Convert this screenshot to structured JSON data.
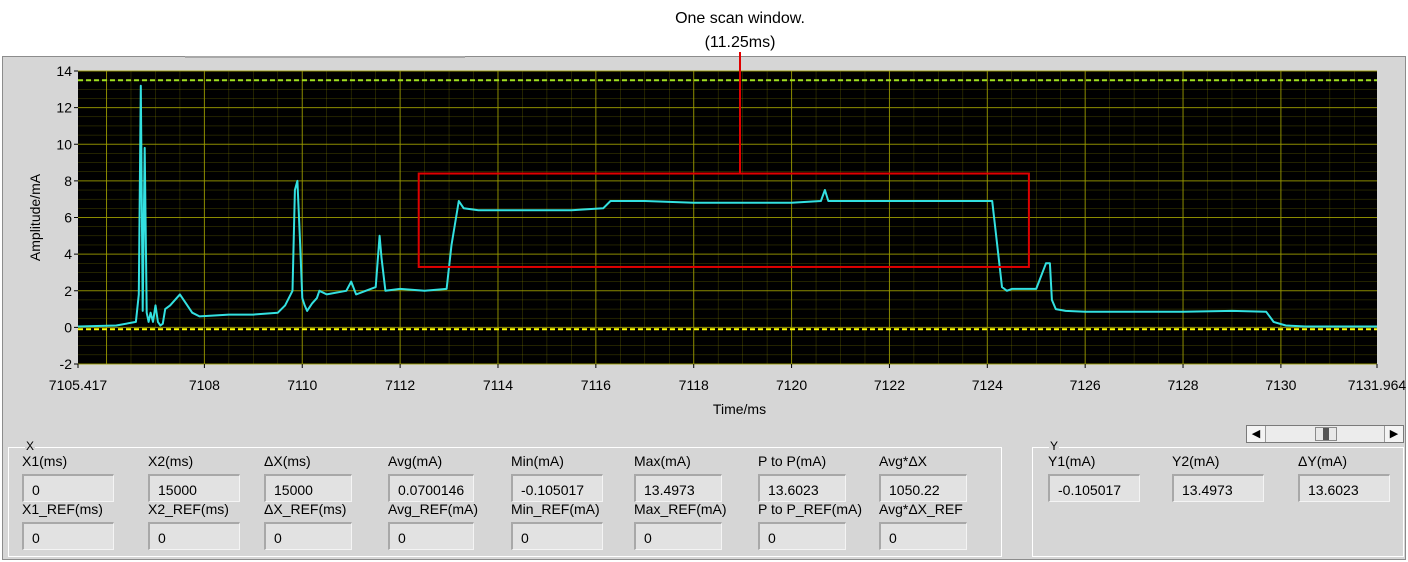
{
  "annotation": {
    "line1": "One scan window.",
    "line2": "(11.25ms)"
  },
  "chart_data": {
    "type": "line",
    "xlabel": "Time/ms",
    "ylabel": "Amplitude/mA",
    "xlim": [
      7105.417,
      7131.964
    ],
    "ylim": [
      -2,
      14
    ],
    "x_ticks": [
      "7105.417",
      "7108",
      "7110",
      "7112",
      "7114",
      "7116",
      "7118",
      "7120",
      "7122",
      "7124",
      "7126",
      "7128",
      "7130",
      "7131.964"
    ],
    "y_ticks": [
      "-2",
      "0",
      "2",
      "4",
      "6",
      "8",
      "10",
      "12",
      "14"
    ],
    "grid": true,
    "colors": {
      "plot_bg": "#000000",
      "grid": "#9a9a00",
      "trace": "#33e0e0",
      "cursor1": "#ffff00",
      "cursor2": "#a0e020",
      "highlight": "#e00000"
    },
    "series": [
      {
        "x": [
          7105.417,
          7106.2,
          7106.6,
          7106.66,
          7106.7,
          7106.74,
          7106.78,
          7106.82,
          7106.86,
          7106.9,
          7106.95,
          7107.0,
          7107.05,
          7107.1,
          7107.15,
          7107.2,
          7107.3,
          7107.5,
          7107.6,
          7107.75,
          7107.9,
          7108.5,
          7109.0,
          7109.5,
          7109.65,
          7109.8,
          7109.85,
          7109.9,
          7109.95,
          7110.0,
          7110.05,
          7110.1,
          7110.2,
          7110.3,
          7110.35,
          7110.5,
          7110.9,
          7111.0,
          7111.1,
          7111.5,
          7111.58,
          7111.62,
          7111.7,
          7112.0,
          7112.5,
          7112.95,
          7113.05,
          7113.2,
          7113.3,
          7113.6,
          7114.5,
          7115.5,
          7116.15,
          7116.3,
          7117.0,
          7118.0,
          7119.0,
          7120.0,
          7120.6,
          7120.68,
          7120.75,
          7121.5,
          7122.5,
          7123.5,
          7124.1,
          7124.3,
          7124.4,
          7124.5,
          7125.0,
          7125.2,
          7125.28,
          7125.32,
          7125.4,
          7125.6,
          7126.0,
          7127.0,
          7128.0,
          7129.0,
          7129.7,
          7129.85,
          7130.1,
          7130.5,
          7131.0,
          7131.964
        ],
        "y": [
          0.05,
          0.1,
          0.3,
          1.8,
          13.2,
          0.9,
          9.8,
          0.8,
          0.3,
          0.8,
          0.3,
          1.2,
          0.3,
          0.1,
          0.2,
          1.0,
          1.2,
          1.8,
          1.4,
          0.8,
          0.6,
          0.7,
          0.7,
          0.8,
          1.2,
          2.0,
          7.5,
          8.0,
          5.0,
          1.6,
          1.2,
          0.9,
          1.3,
          1.6,
          2.0,
          1.8,
          2.0,
          2.5,
          1.8,
          2.2,
          5.0,
          3.8,
          2.0,
          2.1,
          2.0,
          2.1,
          4.5,
          6.9,
          6.5,
          6.4,
          6.4,
          6.4,
          6.5,
          6.9,
          6.9,
          6.8,
          6.8,
          6.8,
          6.9,
          7.5,
          6.9,
          6.9,
          6.9,
          6.9,
          6.9,
          2.2,
          2.0,
          2.1,
          2.1,
          3.5,
          3.5,
          1.5,
          1.0,
          0.9,
          0.85,
          0.85,
          0.85,
          0.9,
          0.85,
          0.3,
          0.1,
          0.05,
          0.05,
          0.05
        ]
      }
    ],
    "cursors": {
      "y1": -0.105017,
      "y2": 13.4973
    },
    "highlight_window": {
      "x": [
        7112.38,
        7124.85
      ],
      "y": [
        3.3,
        8.4
      ]
    }
  },
  "measure_x": {
    "group_label": "X",
    "labels": [
      "X1(ms)",
      "X2(ms)",
      "ΔX(ms)",
      "Avg(mA)",
      "Min(mA)",
      "Max(mA)",
      "P to P(mA)",
      "Avg*ΔX"
    ],
    "values": [
      "0",
      "15000",
      "15000",
      "0.0700146",
      "-0.105017",
      "13.4973",
      "13.6023",
      "1050.22"
    ],
    "ref_labels": [
      "X1_REF(ms)",
      "X2_REF(ms)",
      "ΔX_REF(ms)",
      "Avg_REF(mA)",
      "Min_REF(mA)",
      "Max_REF(mA)",
      "P to P_REF(mA)",
      "Avg*ΔX_REF"
    ],
    "ref_values": [
      "0",
      "0",
      "0",
      "0",
      "0",
      "0",
      "0",
      "0"
    ]
  },
  "measure_y": {
    "group_label": "Y",
    "labels": [
      "Y1(mA)",
      "Y2(mA)",
      "ΔY(mA)"
    ],
    "values": [
      "-0.105017",
      "13.4973",
      "13.6023"
    ]
  },
  "scrollbar": {
    "left_arrow": "◀",
    "right_arrow": "▶"
  }
}
